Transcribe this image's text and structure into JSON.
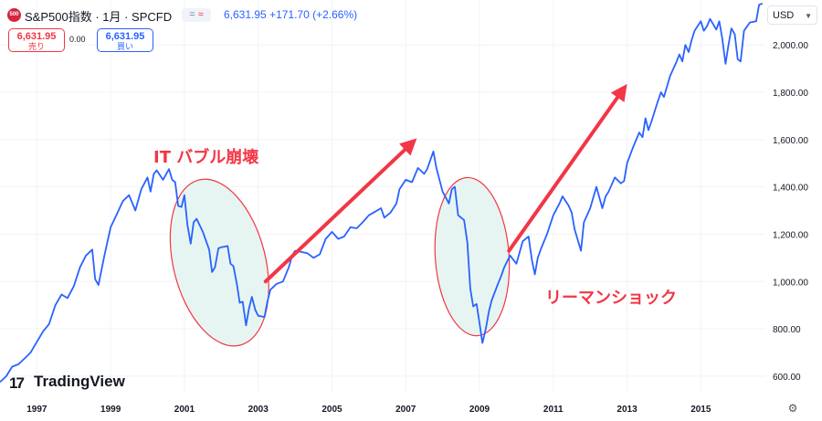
{
  "header": {
    "logo_text": "500",
    "symbol_title": "S&P500指数 · 1月 · SPCFD",
    "badge_equal": "=",
    "badge_approx": "≈",
    "last_price": "6,631.95",
    "change": "+171.70 (+2.66%)",
    "currency": "USD"
  },
  "trade": {
    "sell_price": "6,631.95",
    "sell_label": "売り",
    "spread": "0.00",
    "buy_price": "6,631.95",
    "buy_label": "買い"
  },
  "brand": {
    "logo_mark": "17",
    "name": "TradingView"
  },
  "colors": {
    "line": "#2962ff",
    "annotation": "#f23645",
    "ellipse_fill": "#e6f5f1",
    "grid": "#f0f3fa"
  },
  "icons": {
    "settings": "gear-icon",
    "currency_dropdown": "chevron-down-icon"
  },
  "chart_data": {
    "type": "line",
    "title": "",
    "xlabel": "",
    "ylabel": "",
    "x_ticks": [
      "1997",
      "1999",
      "2001",
      "2003",
      "2005",
      "2007",
      "2009",
      "2011",
      "2013",
      "2015"
    ],
    "y_ticks": [
      "600.00",
      "800.00",
      "1,000.00",
      "1,200.00",
      "1,400.00",
      "1,600.00",
      "1,800.00",
      "2,000.00"
    ],
    "ylim": [
      530,
      2190
    ],
    "xlim": [
      1996.0,
      2016.75
    ],
    "grid": true,
    "series": [
      {
        "values": [
          [
            1996.0,
            575
          ],
          [
            1996.17,
            600
          ],
          [
            1996.33,
            640
          ],
          [
            1996.5,
            650
          ],
          [
            1996.67,
            675
          ],
          [
            1996.83,
            700
          ],
          [
            1997.0,
            745
          ],
          [
            1997.17,
            790
          ],
          [
            1997.33,
            820
          ],
          [
            1997.5,
            900
          ],
          [
            1997.67,
            945
          ],
          [
            1997.83,
            930
          ],
          [
            1998.0,
            980
          ],
          [
            1998.17,
            1060
          ],
          [
            1998.33,
            1110
          ],
          [
            1998.5,
            1135
          ],
          [
            1998.58,
            1010
          ],
          [
            1998.67,
            985
          ],
          [
            1998.83,
            1110
          ],
          [
            1999.0,
            1230
          ],
          [
            1999.17,
            1285
          ],
          [
            1999.33,
            1340
          ],
          [
            1999.5,
            1365
          ],
          [
            1999.67,
            1300
          ],
          [
            1999.83,
            1390
          ],
          [
            2000.0,
            1440
          ],
          [
            2000.08,
            1380
          ],
          [
            2000.17,
            1455
          ],
          [
            2000.25,
            1470
          ],
          [
            2000.42,
            1430
          ],
          [
            2000.58,
            1475
          ],
          [
            2000.67,
            1430
          ],
          [
            2000.75,
            1420
          ],
          [
            2000.83,
            1320
          ],
          [
            2000.92,
            1315
          ],
          [
            2001.0,
            1365
          ],
          [
            2001.08,
            1240
          ],
          [
            2001.17,
            1160
          ],
          [
            2001.25,
            1250
          ],
          [
            2001.33,
            1265
          ],
          [
            2001.5,
            1210
          ],
          [
            2001.67,
            1135
          ],
          [
            2001.75,
            1040
          ],
          [
            2001.83,
            1060
          ],
          [
            2001.92,
            1140
          ],
          [
            2002.0,
            1145
          ],
          [
            2002.17,
            1150
          ],
          [
            2002.25,
            1075
          ],
          [
            2002.33,
            1065
          ],
          [
            2002.42,
            990
          ],
          [
            2002.5,
            910
          ],
          [
            2002.58,
            915
          ],
          [
            2002.67,
            815
          ],
          [
            2002.75,
            885
          ],
          [
            2002.83,
            935
          ],
          [
            2002.92,
            880
          ],
          [
            2003.0,
            855
          ],
          [
            2003.17,
            850
          ],
          [
            2003.25,
            915
          ],
          [
            2003.33,
            965
          ],
          [
            2003.5,
            990
          ],
          [
            2003.67,
            1000
          ],
          [
            2003.83,
            1060
          ],
          [
            2003.92,
            1110
          ],
          [
            2004.0,
            1130
          ],
          [
            2004.17,
            1125
          ],
          [
            2004.33,
            1120
          ],
          [
            2004.5,
            1100
          ],
          [
            2004.67,
            1115
          ],
          [
            2004.83,
            1180
          ],
          [
            2005.0,
            1210
          ],
          [
            2005.17,
            1180
          ],
          [
            2005.33,
            1190
          ],
          [
            2005.5,
            1230
          ],
          [
            2005.67,
            1225
          ],
          [
            2005.83,
            1250
          ],
          [
            2006.0,
            1280
          ],
          [
            2006.17,
            1295
          ],
          [
            2006.33,
            1310
          ],
          [
            2006.42,
            1270
          ],
          [
            2006.58,
            1290
          ],
          [
            2006.75,
            1330
          ],
          [
            2006.83,
            1390
          ],
          [
            2007.0,
            1430
          ],
          [
            2007.17,
            1420
          ],
          [
            2007.33,
            1480
          ],
          [
            2007.5,
            1455
          ],
          [
            2007.58,
            1475
          ],
          [
            2007.75,
            1550
          ],
          [
            2007.83,
            1480
          ],
          [
            2008.0,
            1380
          ],
          [
            2008.17,
            1330
          ],
          [
            2008.25,
            1390
          ],
          [
            2008.33,
            1400
          ],
          [
            2008.42,
            1280
          ],
          [
            2008.58,
            1260
          ],
          [
            2008.67,
            1165
          ],
          [
            2008.75,
            970
          ],
          [
            2008.83,
            895
          ],
          [
            2008.92,
            905
          ],
          [
            2009.0,
            825
          ],
          [
            2009.08,
            740
          ],
          [
            2009.17,
            800
          ],
          [
            2009.25,
            870
          ],
          [
            2009.33,
            920
          ],
          [
            2009.5,
            990
          ],
          [
            2009.58,
            1020
          ],
          [
            2009.67,
            1060
          ],
          [
            2009.83,
            1110
          ],
          [
            2010.0,
            1075
          ],
          [
            2010.17,
            1170
          ],
          [
            2010.33,
            1190
          ],
          [
            2010.42,
            1090
          ],
          [
            2010.5,
            1030
          ],
          [
            2010.58,
            1100
          ],
          [
            2010.67,
            1140
          ],
          [
            2010.83,
            1200
          ],
          [
            2011.0,
            1280
          ],
          [
            2011.17,
            1330
          ],
          [
            2011.25,
            1360
          ],
          [
            2011.42,
            1320
          ],
          [
            2011.5,
            1290
          ],
          [
            2011.58,
            1220
          ],
          [
            2011.75,
            1130
          ],
          [
            2011.83,
            1250
          ],
          [
            2012.0,
            1310
          ],
          [
            2012.17,
            1400
          ],
          [
            2012.33,
            1310
          ],
          [
            2012.42,
            1360
          ],
          [
            2012.5,
            1380
          ],
          [
            2012.67,
            1440
          ],
          [
            2012.83,
            1415
          ],
          [
            2012.92,
            1425
          ],
          [
            2013.0,
            1500
          ],
          [
            2013.17,
            1570
          ],
          [
            2013.33,
            1630
          ],
          [
            2013.42,
            1610
          ],
          [
            2013.5,
            1690
          ],
          [
            2013.58,
            1640
          ],
          [
            2013.67,
            1680
          ],
          [
            2013.83,
            1760
          ],
          [
            2013.92,
            1800
          ],
          [
            2014.0,
            1780
          ],
          [
            2014.17,
            1870
          ],
          [
            2014.33,
            1925
          ],
          [
            2014.42,
            1960
          ],
          [
            2014.5,
            1930
          ],
          [
            2014.58,
            2000
          ],
          [
            2014.67,
            1970
          ],
          [
            2014.75,
            2020
          ],
          [
            2014.83,
            2060
          ],
          [
            2015.0,
            2100
          ],
          [
            2015.08,
            2060
          ],
          [
            2015.17,
            2080
          ],
          [
            2015.25,
            2110
          ],
          [
            2015.42,
            2065
          ],
          [
            2015.5,
            2100
          ],
          [
            2015.58,
            2030
          ],
          [
            2015.67,
            1920
          ],
          [
            2015.75,
            2000
          ],
          [
            2015.83,
            2070
          ],
          [
            2015.92,
            2045
          ],
          [
            2016.0,
            1940
          ],
          [
            2016.08,
            1930
          ],
          [
            2016.17,
            2060
          ],
          [
            2016.33,
            2095
          ],
          [
            2016.5,
            2100
          ],
          [
            2016.58,
            2170
          ],
          [
            2016.67,
            2175
          ]
        ]
      }
    ],
    "annotations": [
      {
        "text": "IT バブル崩壊",
        "type": "ellipse",
        "x_range": [
          2000.7,
          2003.2
        ],
        "y_range": [
          720,
          1440
        ]
      },
      {
        "text": "リーマンショック",
        "type": "ellipse",
        "x_range": [
          2007.8,
          2009.8
        ],
        "y_range": [
          770,
          1440
        ]
      },
      {
        "text": "",
        "type": "arrow",
        "from": [
          2003.2,
          1000
        ],
        "to": [
          2007.3,
          1605
        ]
      },
      {
        "text": "",
        "type": "arrow",
        "from": [
          2009.8,
          1130
        ],
        "to": [
          2013.0,
          1835
        ]
      }
    ]
  }
}
